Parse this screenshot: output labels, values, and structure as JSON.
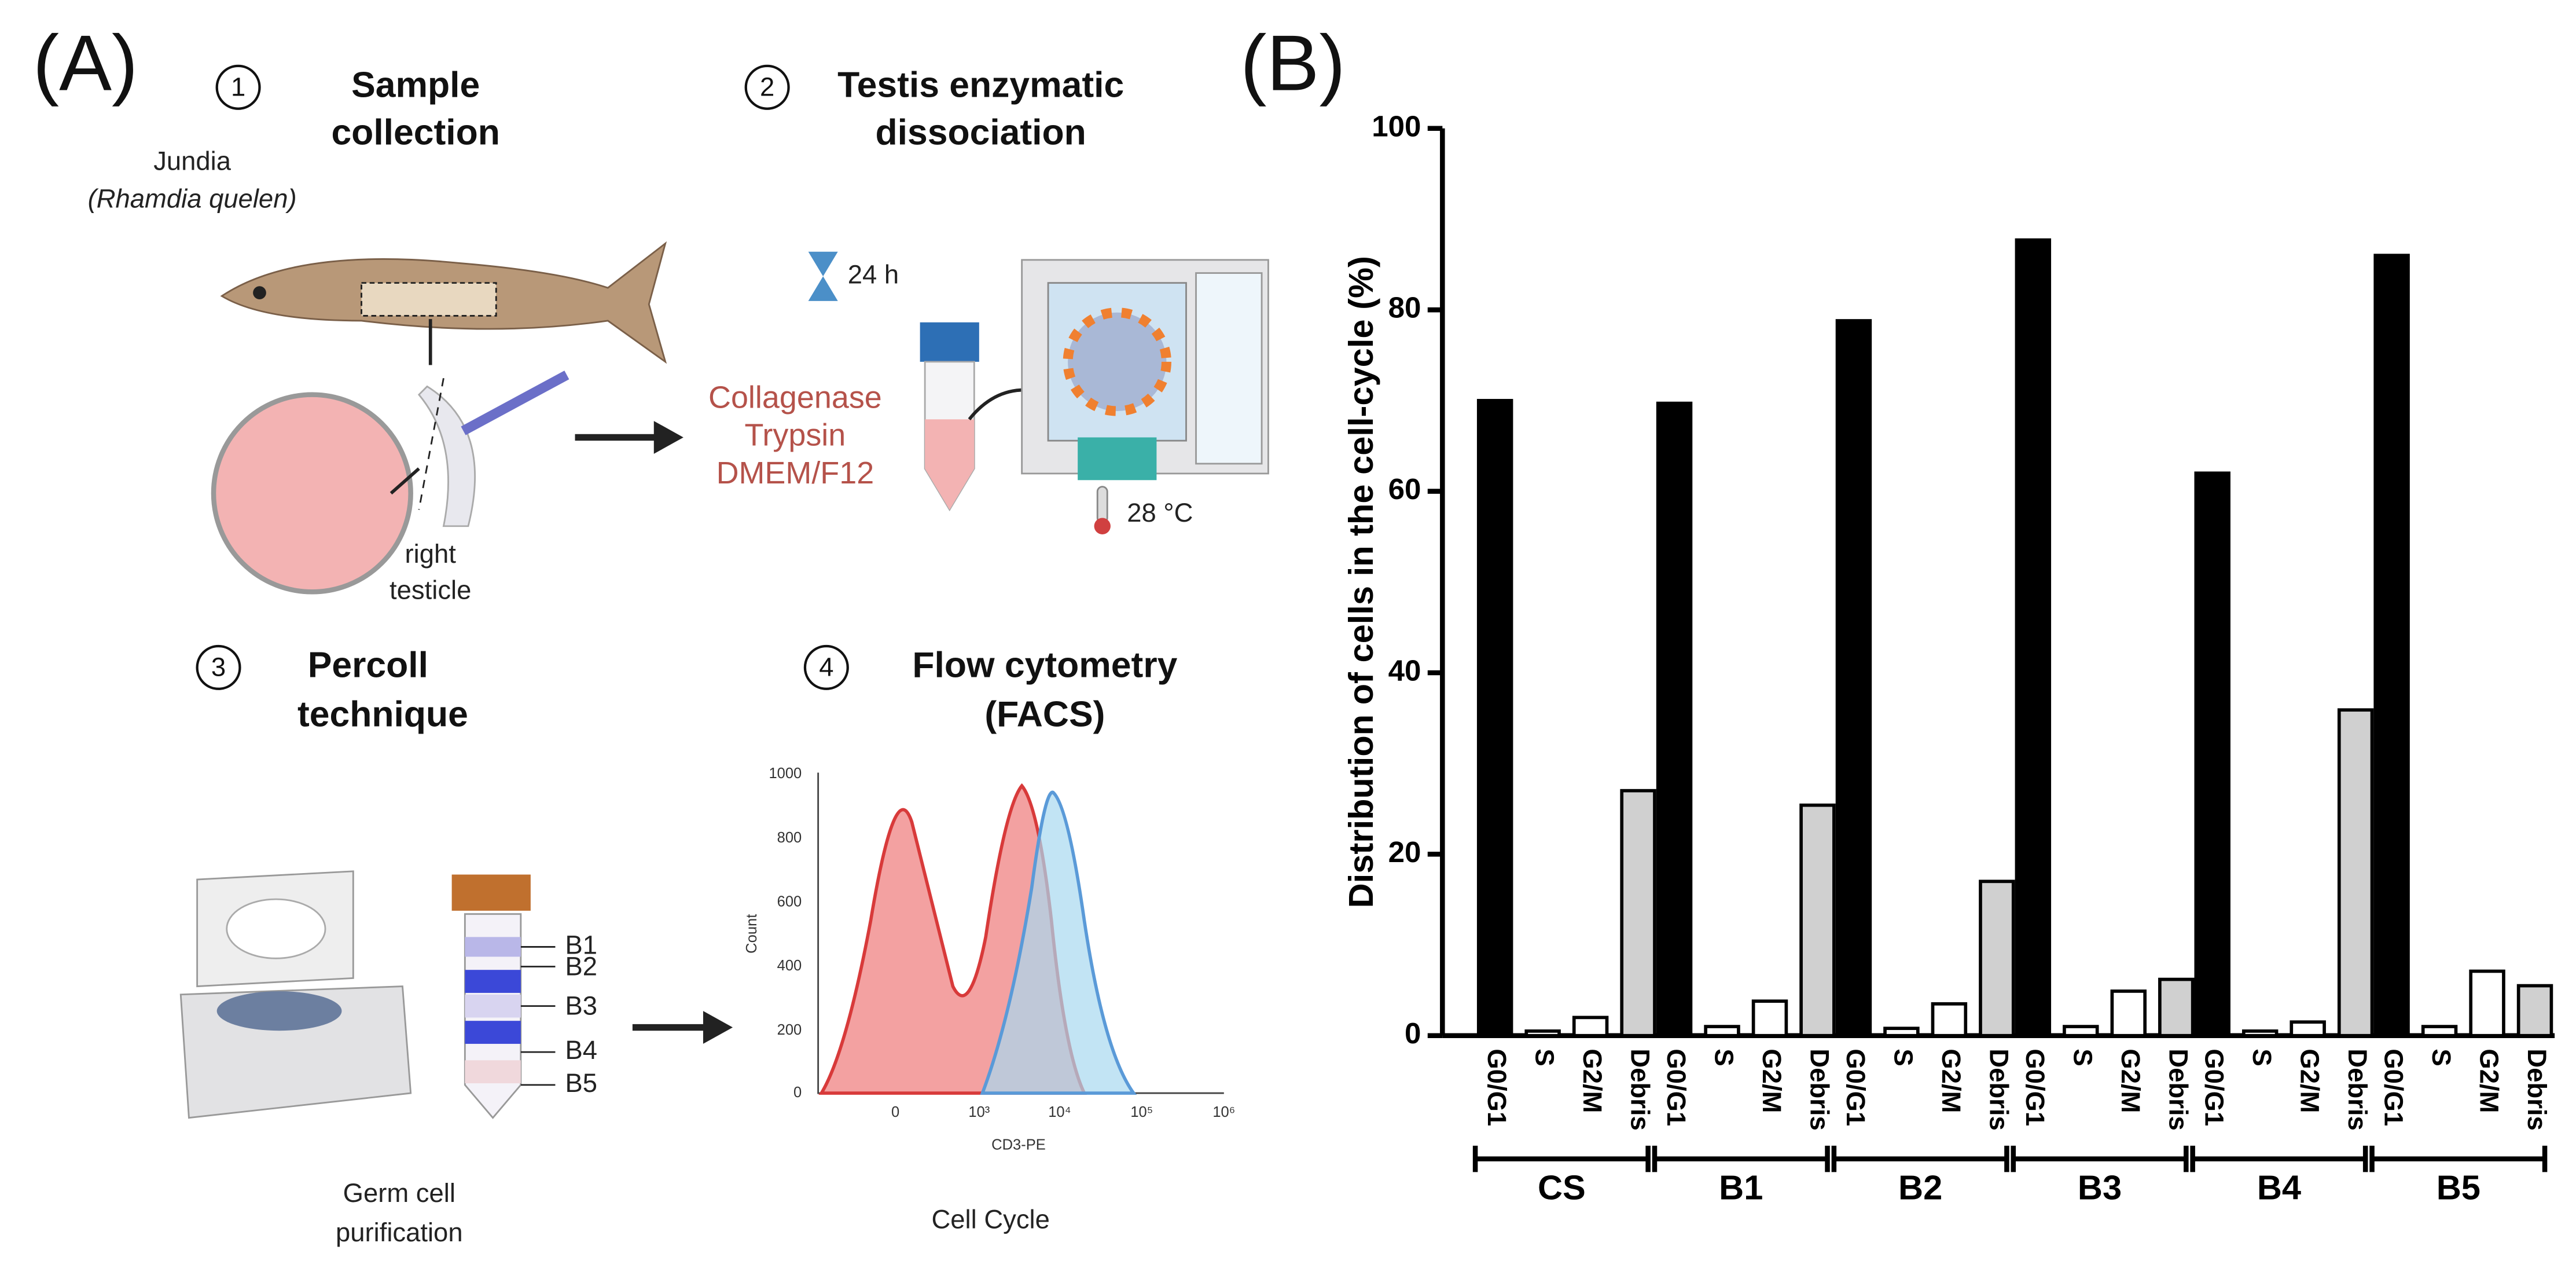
{
  "panel_a": {
    "label": "(A)",
    "steps": [
      {
        "number": "1",
        "title": [
          "Sample",
          "collection"
        ]
      },
      {
        "number": "2",
        "title": [
          "Testis enzymatic",
          "dissociation"
        ]
      },
      {
        "number": "3",
        "title": [
          "Percoll",
          "technique"
        ]
      },
      {
        "number": "4",
        "title": [
          "Flow cytometry",
          "(FACS)"
        ]
      }
    ],
    "species": [
      "Jundia",
      "(Rhamdia quelen)"
    ],
    "organ": [
      "right",
      "testicle"
    ],
    "time": "24 h",
    "reagents": [
      "Collagenase",
      "Trypsin",
      "DMEM/F12"
    ],
    "temperature": "28 °C",
    "fractions": [
      "B1",
      "B2",
      "B3",
      "B4",
      "B5"
    ],
    "purification": [
      "Germ cell",
      "purification"
    ],
    "facs": {
      "yticks": [
        "1000",
        "800",
        "600",
        "400",
        "200",
        "0"
      ],
      "xticks": [
        "0",
        "10³",
        "10⁴",
        "10⁵",
        "10⁶"
      ],
      "xlabel": "CD3-PE",
      "ylabel": "Count",
      "caption": "Cell Cycle"
    }
  },
  "panel_b": {
    "label": "(B)"
  },
  "chart_data": {
    "type": "bar",
    "ylabel": "Distribution of cells in the cell-cycle (%)",
    "categories": [
      "G0/G1",
      "S",
      "G2/M",
      "Debris"
    ],
    "colors": [
      "#000000",
      "#ffffff",
      "#ffffff",
      "#d0d0d0"
    ],
    "groups": [
      {
        "name": "CS",
        "values": [
          70,
          0.5,
          2,
          27
        ]
      },
      {
        "name": "B1",
        "values": [
          69.7,
          1,
          3.8,
          25.4
        ]
      },
      {
        "name": "B2",
        "values": [
          78.8,
          0.8,
          3.5,
          17
        ]
      },
      {
        "name": "B3",
        "values": [
          87.7,
          1,
          4.9,
          6.2
        ]
      },
      {
        "name": "B4",
        "values": [
          62,
          0.5,
          1.5,
          35.9
        ]
      },
      {
        "name": "B5",
        "values": [
          86,
          1,
          7.1,
          5.5
        ]
      }
    ],
    "ylim": [
      0,
      100
    ],
    "yticks": [
      0,
      20,
      40,
      60,
      80,
      100
    ]
  }
}
